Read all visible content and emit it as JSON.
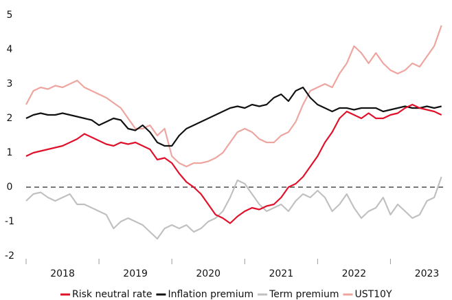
{
  "chart_data": {
    "type": "line",
    "categories": [
      "2018",
      "2019",
      "2020",
      "2021",
      "2022",
      "2023"
    ],
    "x": [
      2018.0,
      2018.1,
      2018.2,
      2018.3,
      2018.4,
      2018.5,
      2018.6,
      2018.7,
      2018.8,
      2018.9,
      2019.0,
      2019.1,
      2019.2,
      2019.3,
      2019.4,
      2019.5,
      2019.6,
      2019.7,
      2019.8,
      2019.9,
      2020.0,
      2020.1,
      2020.2,
      2020.3,
      2020.4,
      2020.5,
      2020.6,
      2020.7,
      2020.8,
      2020.9,
      2021.0,
      2021.1,
      2021.2,
      2021.3,
      2021.4,
      2021.5,
      2021.6,
      2021.7,
      2021.8,
      2021.9,
      2022.0,
      2022.1,
      2022.2,
      2022.3,
      2022.4,
      2022.5,
      2022.6,
      2022.7,
      2022.8,
      2022.9,
      2023.0,
      2023.1,
      2023.2,
      2023.3,
      2023.4,
      2023.5,
      2023.6,
      2023.7
    ],
    "series": [
      {
        "name": "Risk neutral rate",
        "color": "#e0102a",
        "values": [
          0.9,
          1.0,
          1.05,
          1.1,
          1.15,
          1.2,
          1.3,
          1.4,
          1.55,
          1.45,
          1.35,
          1.25,
          1.2,
          1.3,
          1.25,
          1.3,
          1.2,
          1.1,
          0.8,
          0.85,
          0.7,
          0.4,
          0.15,
          0.0,
          -0.2,
          -0.5,
          -0.8,
          -0.9,
          -1.05,
          -0.85,
          -0.7,
          -0.6,
          -0.65,
          -0.55,
          -0.5,
          -0.3,
          0.0,
          0.1,
          0.3,
          0.6,
          0.9,
          1.3,
          1.6,
          2.0,
          2.2,
          2.1,
          2.0,
          2.15,
          2.0,
          2.0,
          2.1,
          2.15,
          2.3,
          2.4,
          2.3,
          2.25,
          2.2,
          2.1
        ]
      },
      {
        "name": "Inflation premium",
        "color": "#111111",
        "values": [
          2.0,
          2.1,
          2.15,
          2.1,
          2.1,
          2.15,
          2.1,
          2.05,
          2.0,
          1.95,
          1.8,
          1.9,
          2.0,
          1.95,
          1.7,
          1.65,
          1.8,
          1.6,
          1.3,
          1.2,
          1.2,
          1.5,
          1.7,
          1.8,
          1.9,
          2.0,
          2.1,
          2.2,
          2.3,
          2.35,
          2.3,
          2.4,
          2.35,
          2.4,
          2.6,
          2.7,
          2.5,
          2.8,
          2.9,
          2.6,
          2.4,
          2.3,
          2.2,
          2.3,
          2.3,
          2.25,
          2.3,
          2.3,
          2.3,
          2.2,
          2.25,
          2.3,
          2.35,
          2.3,
          2.3,
          2.35,
          2.3,
          2.35
        ]
      },
      {
        "name": "Term premium",
        "color": "#c0c0c0",
        "values": [
          -0.4,
          -0.2,
          -0.15,
          -0.3,
          -0.4,
          -0.3,
          -0.2,
          -0.5,
          -0.5,
          -0.6,
          -0.7,
          -0.8,
          -1.2,
          -1.0,
          -0.9,
          -1.0,
          -1.1,
          -1.3,
          -1.5,
          -1.2,
          -1.1,
          -1.2,
          -1.1,
          -1.3,
          -1.2,
          -1.0,
          -0.9,
          -0.7,
          -0.3,
          0.2,
          0.1,
          -0.2,
          -0.5,
          -0.7,
          -0.6,
          -0.5,
          -0.7,
          -0.4,
          -0.2,
          -0.3,
          -0.1,
          -0.3,
          -0.7,
          -0.5,
          -0.2,
          -0.6,
          -0.9,
          -0.7,
          -0.6,
          -0.3,
          -0.8,
          -0.5,
          -0.7,
          -0.9,
          -0.8,
          -0.4,
          -0.3,
          0.3
        ]
      },
      {
        "name": "UST10Y",
        "color": "#eea49f",
        "values": [
          2.4,
          2.8,
          2.9,
          2.85,
          2.95,
          2.9,
          3.0,
          3.1,
          2.9,
          2.8,
          2.7,
          2.6,
          2.45,
          2.3,
          2.0,
          1.7,
          1.7,
          1.8,
          1.5,
          1.7,
          0.9,
          0.7,
          0.6,
          0.7,
          0.7,
          0.75,
          0.85,
          1.0,
          1.3,
          1.6,
          1.7,
          1.6,
          1.4,
          1.3,
          1.3,
          1.5,
          1.6,
          1.9,
          2.4,
          2.8,
          2.9,
          3.0,
          2.9,
          3.3,
          3.6,
          4.1,
          3.9,
          3.6,
          3.9,
          3.6,
          3.4,
          3.3,
          3.4,
          3.6,
          3.5,
          3.8,
          4.1,
          4.7
        ]
      }
    ],
    "xlim": [
      2018,
      2023.75
    ],
    "xticks": [
      2018,
      2019,
      2020,
      2021,
      2022,
      2023
    ],
    "ylim": [
      -2,
      5
    ],
    "yticks": [
      -2,
      -1,
      0,
      1,
      2,
      3,
      4,
      5
    ],
    "zero_line": 0,
    "legend": "bottom"
  }
}
